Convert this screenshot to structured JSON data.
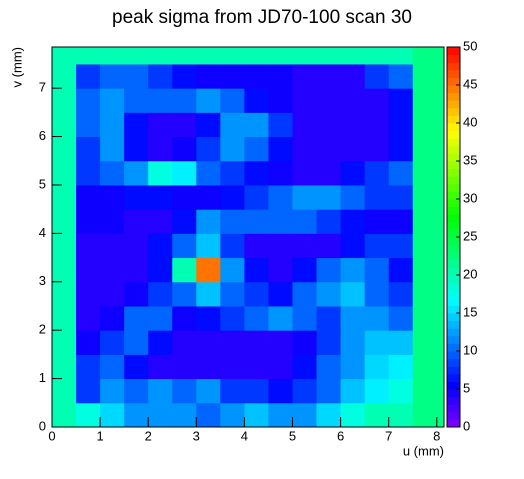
{
  "chart_data": {
    "type": "heatmap",
    "title": "peak sigma from JD70-100 scan 30",
    "x_label": "u (mm)",
    "y_label": "v (mm)",
    "xbins": [
      0,
      0.5,
      1,
      1.5,
      2,
      2.5,
      3,
      3.5,
      4,
      4.5,
      5,
      5.5,
      6,
      6.5,
      7,
      7.5,
      8.15
    ],
    "ybins": [
      0,
      0.5,
      1,
      1.5,
      2,
      2.5,
      3,
      3.5,
      4,
      4.5,
      5,
      5.5,
      6,
      6.5,
      7,
      7.5,
      7.85
    ],
    "z": [
      [
        20,
        18,
        15,
        12,
        12,
        12,
        10,
        12,
        14,
        12,
        12,
        15,
        18,
        20,
        20,
        22
      ],
      [
        20,
        8,
        12,
        10,
        12,
        10,
        12,
        8,
        8,
        6,
        8,
        10,
        14,
        16,
        18,
        22
      ],
      [
        20,
        8,
        10,
        6,
        4,
        4,
        4,
        4,
        4,
        4,
        6,
        10,
        12,
        15,
        16,
        22
      ],
      [
        20,
        5,
        8,
        10,
        6,
        4,
        4,
        4,
        4,
        4,
        5,
        8,
        12,
        14,
        14,
        22
      ],
      [
        20,
        4,
        5,
        10,
        10,
        5,
        6,
        8,
        10,
        12,
        10,
        8,
        12,
        12,
        10,
        22
      ],
      [
        20,
        4,
        4,
        5,
        8,
        10,
        14,
        10,
        8,
        6,
        10,
        12,
        14,
        10,
        8,
        22
      ],
      [
        20,
        4,
        4,
        4,
        6,
        20,
        45,
        12,
        6,
        4,
        6,
        10,
        12,
        10,
        6,
        22
      ],
      [
        20,
        4,
        4,
        4,
        6,
        10,
        14,
        8,
        4,
        4,
        4,
        4,
        6,
        8,
        8,
        22
      ],
      [
        20,
        5,
        5,
        4,
        4,
        6,
        12,
        10,
        10,
        10,
        10,
        8,
        6,
        5,
        5,
        22
      ],
      [
        20,
        5,
        5,
        6,
        6,
        5,
        5,
        6,
        8,
        10,
        12,
        12,
        10,
        8,
        8,
        22
      ],
      [
        20,
        8,
        10,
        12,
        18,
        16,
        10,
        8,
        6,
        5,
        4,
        4,
        6,
        8,
        10,
        22
      ],
      [
        20,
        8,
        12,
        6,
        4,
        5,
        8,
        12,
        10,
        6,
        4,
        4,
        4,
        4,
        6,
        22
      ],
      [
        20,
        10,
        12,
        6,
        4,
        4,
        6,
        12,
        12,
        8,
        4,
        4,
        4,
        4,
        6,
        22
      ],
      [
        20,
        10,
        12,
        10,
        10,
        10,
        12,
        10,
        6,
        5,
        4,
        4,
        4,
        4,
        6,
        22
      ],
      [
        20,
        8,
        10,
        10,
        8,
        6,
        5,
        5,
        5,
        5,
        4,
        4,
        4,
        8,
        10,
        22
      ],
      [
        20,
        20,
        20,
        20,
        20,
        20,
        20,
        20,
        20,
        20,
        20,
        20,
        20,
        20,
        20,
        22
      ]
    ],
    "xlim": [
      0,
      8.15
    ],
    "ylim": [
      0,
      7.85
    ],
    "zlim": [
      0,
      50
    ],
    "xticks": [
      0,
      1,
      2,
      3,
      4,
      5,
      6,
      7,
      8
    ],
    "yticks": [
      0,
      1,
      2,
      3,
      4,
      5,
      6,
      7
    ],
    "zticks": [
      0,
      5,
      10,
      15,
      20,
      25,
      30,
      35,
      40,
      45,
      50
    ],
    "palette": "rainbow"
  }
}
